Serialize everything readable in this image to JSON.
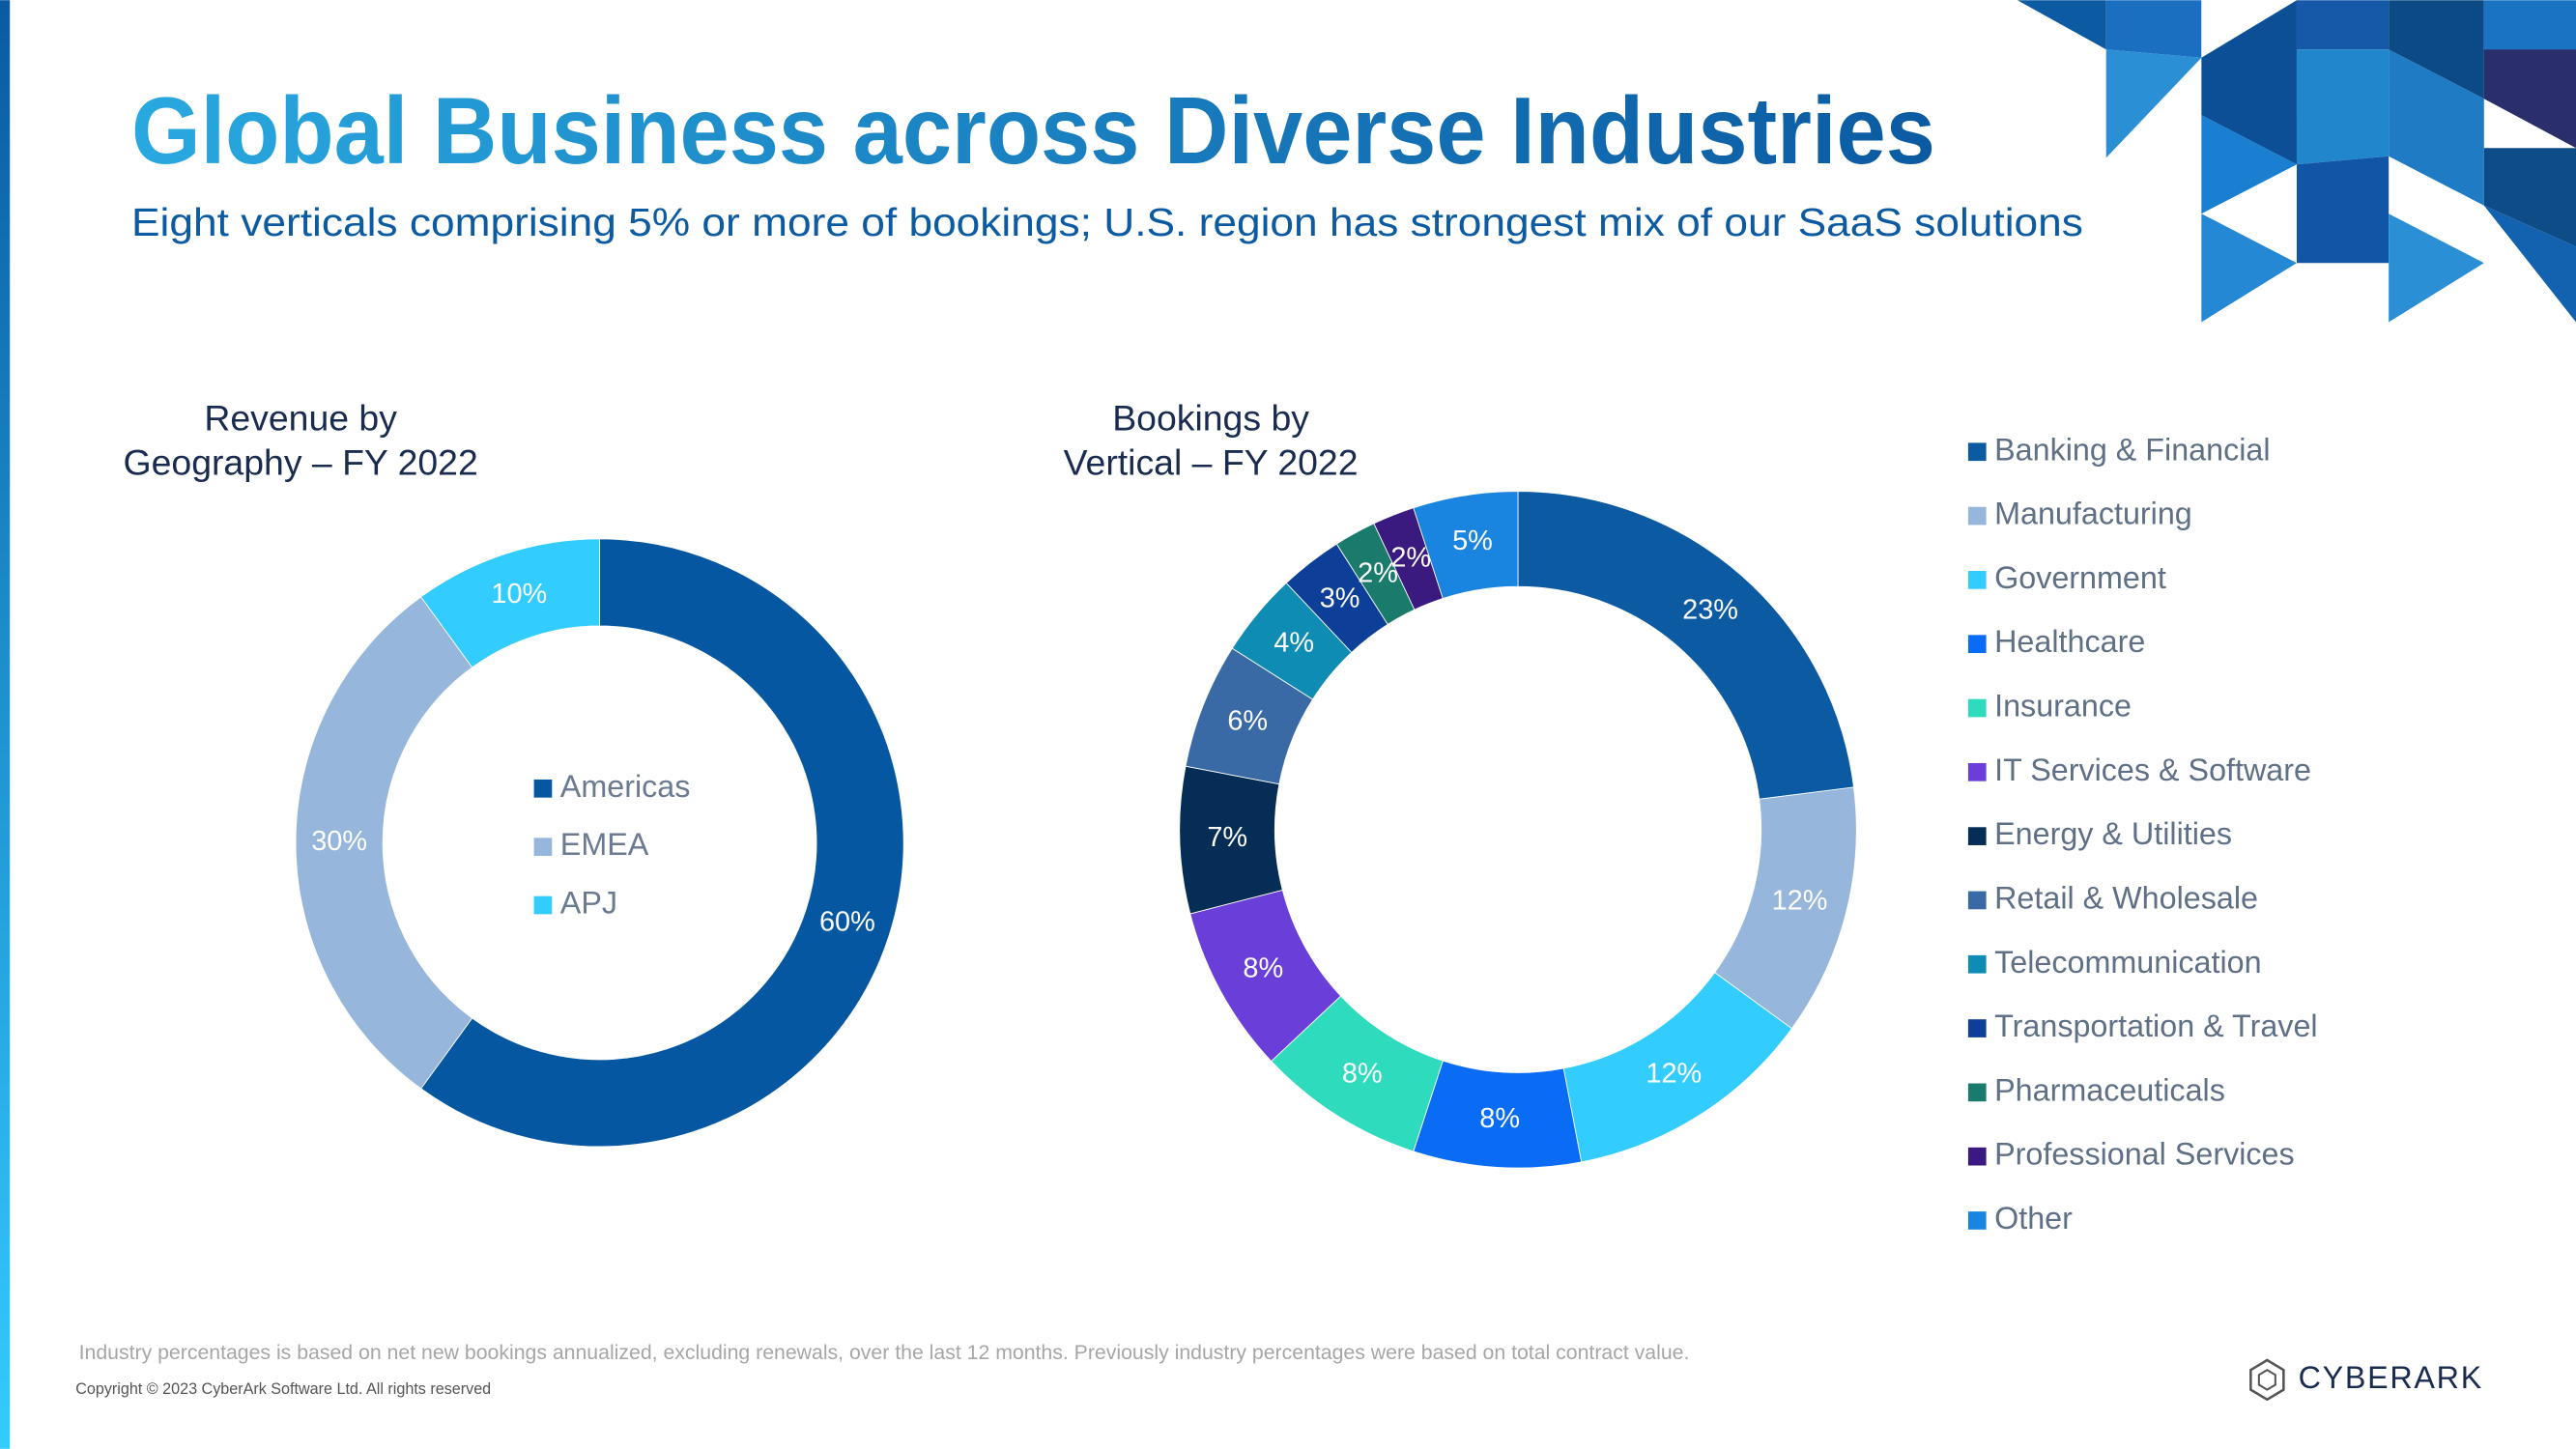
{
  "title": "Global Business across Diverse Industries",
  "subtitle": "Eight verticals comprising 5% or more of bookings; U.S. region has strongest mix of our SaaS solutions",
  "footnote": "Industry percentages is based on net new bookings annualized, excluding renewals, over the last 12 months. Previously industry percentages were based on total contract value.",
  "copyright": "Copyright © 2023 CyberArk Software Ltd. All rights reserved",
  "logo": "CYBERARK",
  "chart_data": [
    {
      "type": "donut",
      "title": "Revenue by\nGeography – FY 2022",
      "legend": "center",
      "categories": [
        "Americas",
        "EMEA",
        "APJ"
      ],
      "values": [
        60,
        30,
        10
      ],
      "value_labels": [
        "60%",
        "30%",
        "10%"
      ],
      "colors": [
        "#0457a0",
        "#97b6db",
        "#33ccff"
      ]
    },
    {
      "type": "donut",
      "title": "Bookings by\nVertical – FY 2022",
      "legend": "right",
      "categories": [
        "Banking & Financial",
        "Manufacturing",
        "Government",
        "Healthcare",
        "Insurance",
        "IT Services & Software",
        "Energy & Utilities",
        "Retail & Wholesale",
        "Telecommunication",
        "Transportation & Travel",
        "Pharmaceuticals",
        "Professional Services",
        "Other"
      ],
      "values": [
        23,
        12,
        12,
        8,
        8,
        8,
        7,
        6,
        4,
        3,
        2,
        2,
        5
      ],
      "value_labels": [
        "23%",
        "12%",
        "12%",
        "8%",
        "8%",
        "8%",
        "7%",
        "6%",
        "4%",
        "3%",
        "2%",
        "2%",
        "5%"
      ],
      "colors": [
        "#0b5aa2",
        "#97b6db",
        "#33ccff",
        "#0a6cf5",
        "#2edbbc",
        "#6a3fd9",
        "#062d55",
        "#3a6aa5",
        "#0f8cb3",
        "#0d3f99",
        "#1a7a6b",
        "#3b1a80",
        "#1a85e0"
      ]
    }
  ]
}
